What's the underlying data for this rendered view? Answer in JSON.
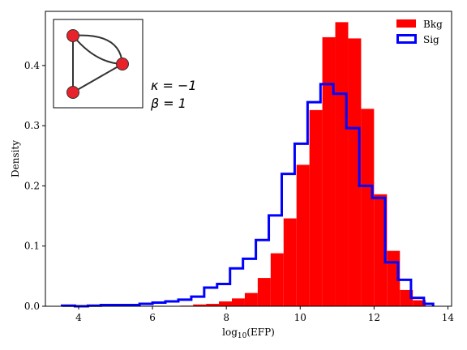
{
  "chart_data": {
    "type": "histogram",
    "xlabel_main": "log",
    "xlabel_sub": "10",
    "xlabel_rest": "(EFP)",
    "ylabel": "Density",
    "xlim": [
      3.1,
      14.1
    ],
    "ylim": [
      0,
      0.49
    ],
    "xticks": [
      4,
      6,
      8,
      10,
      12,
      14
    ],
    "yticks": [
      0.0,
      0.1,
      0.2,
      0.3,
      0.4
    ],
    "legend_position": "top-right",
    "colors": {
      "bkg": "#ff0000",
      "sig": "#0000ff"
    },
    "series": [
      {
        "name": "Bkg",
        "style": "filled",
        "bin_edges": [
          6.75,
          7.1,
          7.45,
          7.8,
          8.15,
          8.5,
          8.85,
          9.2,
          9.55,
          9.9,
          10.25,
          10.6,
          10.95,
          11.3,
          11.65,
          12.0,
          12.35,
          12.7,
          13.05,
          13.4
        ],
        "values": [
          0.001,
          0.003,
          0.004,
          0.008,
          0.013,
          0.022,
          0.047,
          0.088,
          0.146,
          0.235,
          0.326,
          0.447,
          0.472,
          0.445,
          0.328,
          0.186,
          0.092,
          0.027,
          0.01
        ]
      },
      {
        "name": "Sig",
        "style": "step",
        "bin_edges": [
          3.55,
          3.9,
          4.25,
          4.6,
          4.95,
          5.3,
          5.65,
          6.0,
          6.35,
          6.7,
          7.05,
          7.4,
          7.75,
          8.1,
          8.45,
          8.8,
          9.15,
          9.5,
          9.85,
          10.2,
          10.55,
          10.9,
          11.25,
          11.6,
          11.95,
          12.3,
          12.65,
          13.0,
          13.35,
          13.6
        ],
        "values": [
          0.001,
          0.0,
          0.001,
          0.002,
          0.002,
          0.002,
          0.004,
          0.006,
          0.008,
          0.011,
          0.016,
          0.031,
          0.037,
          0.063,
          0.079,
          0.11,
          0.151,
          0.22,
          0.27,
          0.339,
          0.369,
          0.353,
          0.296,
          0.2,
          0.18,
          0.073,
          0.044,
          0.014,
          0.004
        ]
      }
    ],
    "annotation": {
      "line1": "κ = −1",
      "line2": "β = 1"
    },
    "inset_graph": {
      "nodes": 3,
      "edges": 4
    }
  }
}
